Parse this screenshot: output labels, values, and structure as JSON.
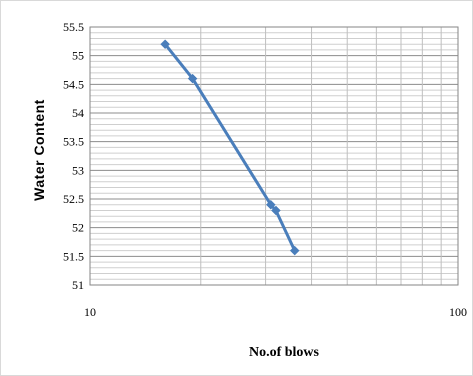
{
  "chart_data": {
    "type": "line",
    "xlabel": "No.of blows",
    "ylabel": "Water  Content",
    "xscale": "log",
    "xlim": [
      10,
      100
    ],
    "ylim": [
      51,
      55.5
    ],
    "xticks": [
      "10",
      "100"
    ],
    "yticks": [
      "51",
      "51.5",
      "52",
      "52.5",
      "53",
      "53.5",
      "54",
      "54.5",
      "55",
      "55.5"
    ],
    "grid": true,
    "legend": "none",
    "series": [
      {
        "x": [
          16,
          19,
          31,
          32,
          36
        ],
        "y": [
          55.2,
          54.6,
          52.4,
          52.3,
          51.6
        ],
        "color": "#4a7ebb"
      }
    ]
  }
}
